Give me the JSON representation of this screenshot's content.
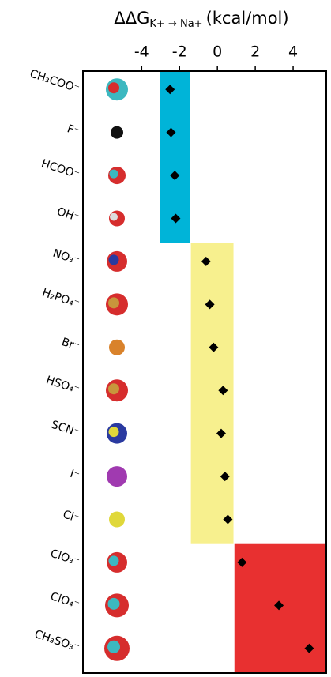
{
  "chart_data": {
    "type": "dot",
    "xlabel": "ΔΔG",
    "xlabel_sub": "K+ → Na+",
    "xlabel_unit": "(kcal/mol)",
    "categories": [
      "CH₃COO⁻",
      "F⁻",
      "HCOO⁻",
      "OH⁻",
      "NO₃⁻",
      "H₂PO₄⁻",
      "Br⁻",
      "HSO₄⁻",
      "SCN⁻",
      "I⁻",
      "Cl⁻",
      "ClO₃⁻",
      "ClO₄⁻",
      "CH₃SO₃⁻"
    ],
    "values": [
      -2.5,
      -2.45,
      -2.25,
      -2.2,
      -0.6,
      -0.4,
      -0.2,
      0.3,
      0.2,
      0.4,
      0.55,
      1.3,
      3.25,
      4.85
    ],
    "color": "#000000",
    "xlim": [
      -7.1,
      5.75
    ],
    "xticks": [
      -4,
      -2,
      0,
      2,
      4
    ],
    "bands": [
      {
        "color": "#00b4d8",
        "xrange": [
          -3.05,
          -1.45
        ],
        "rows": [
          0,
          3
        ]
      },
      {
        "color": "#f7f08e",
        "xrange": [
          -1.4,
          0.85
        ],
        "rows": [
          4,
          10
        ]
      },
      {
        "color": "#e83030",
        "xrange": [
          0.9,
          5.75
        ],
        "rows": [
          11,
          13
        ]
      }
    ]
  }
}
